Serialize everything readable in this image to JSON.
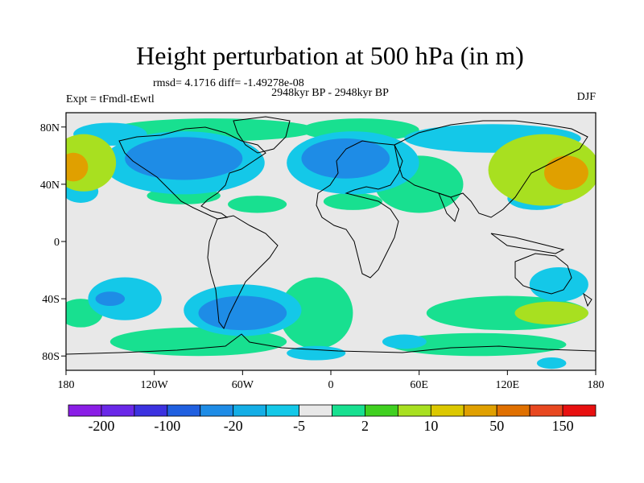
{
  "chart_data": {
    "type": "heatmap",
    "title": "Height perturbation at 500 hPa (in m)",
    "subtitle_stats": "rmsd= 4.1716 diff= -1.49278e-08",
    "left_label": "Expt = tFmdl-tEwtl",
    "center_label": "2948kyr BP - 2948kyr BP",
    "right_label": "DJF",
    "x_ticks": [
      "180",
      "120W",
      "60W",
      "0",
      "60E",
      "120E",
      "180"
    ],
    "y_ticks": [
      "80N",
      "40N",
      "0",
      "40S",
      "80S"
    ],
    "xlim": [
      -180,
      180
    ],
    "ylim": [
      -90,
      90
    ],
    "colorbar_labels": [
      "-200",
      "-100",
      "-20",
      "-5",
      "2",
      "10",
      "50",
      "150"
    ],
    "colorbar_colors": [
      "#8a1ee6",
      "#6a28e8",
      "#3c32e0",
      "#2060e0",
      "#1e8ce6",
      "#14aee6",
      "#14c8e8",
      "#e8e8e8",
      "#18e090",
      "#40d020",
      "#a8e020",
      "#dcc800",
      "#e0a000",
      "#e07000",
      "#e84820",
      "#e81010"
    ],
    "positive_regions": [
      {
        "label": "",
        "cx": -168,
        "cy": 55,
        "rx": 22,
        "ry": 20,
        "level": 10
      },
      {
        "label": "",
        "cx": -175,
        "cy": 52,
        "rx": 10,
        "ry": 10,
        "level": 50
      },
      {
        "label": "",
        "cx": 145,
        "cy": 50,
        "rx": 38,
        "ry": 25,
        "level": 10
      },
      {
        "label": "",
        "cx": 160,
        "cy": 48,
        "rx": 15,
        "ry": 12,
        "level": 50
      },
      {
        "label": "",
        "cx": -80,
        "cy": 78,
        "rx": 70,
        "ry": 8,
        "level": 2
      },
      {
        "label": "",
        "cx": 20,
        "cy": 78,
        "rx": 40,
        "ry": 8,
        "level": 2
      },
      {
        "label": "",
        "cx": 60,
        "cy": 40,
        "rx": 30,
        "ry": 20,
        "level": 2
      },
      {
        "label": "",
        "cx": -100,
        "cy": 32,
        "rx": 25,
        "ry": 6,
        "level": 2
      },
      {
        "label": "",
        "cx": -50,
        "cy": 26,
        "rx": 20,
        "ry": 6,
        "level": 2
      },
      {
        "label": "",
        "cx": 15,
        "cy": 28,
        "rx": 20,
        "ry": 6,
        "level": 2
      },
      {
        "label": "",
        "cx": -10,
        "cy": -50,
        "rx": 25,
        "ry": 25,
        "level": 2
      },
      {
        "label": "",
        "cx": 120,
        "cy": -50,
        "rx": 55,
        "ry": 12,
        "level": 2
      },
      {
        "label": "",
        "cx": 150,
        "cy": -50,
        "rx": 25,
        "ry": 8,
        "level": 10
      },
      {
        "label": "",
        "cx": -90,
        "cy": -70,
        "rx": 60,
        "ry": 10,
        "level": 2
      },
      {
        "label": "",
        "cx": 100,
        "cy": -72,
        "rx": 60,
        "ry": 8,
        "level": 2
      },
      {
        "label": "",
        "cx": -170,
        "cy": -50,
        "rx": 15,
        "ry": 10,
        "level": 2
      }
    ],
    "negative_regions": [
      {
        "label": "",
        "cx": -100,
        "cy": 55,
        "rx": 55,
        "ry": 22,
        "level": -5
      },
      {
        "label": "",
        "cx": -100,
        "cy": 58,
        "rx": 40,
        "ry": 15,
        "level": -20
      },
      {
        "label": "",
        "cx": 15,
        "cy": 55,
        "rx": 45,
        "ry": 22,
        "level": -5
      },
      {
        "label": "",
        "cx": 10,
        "cy": 58,
        "rx": 30,
        "ry": 14,
        "level": -20
      },
      {
        "label": "",
        "cx": 110,
        "cy": 72,
        "rx": 60,
        "ry": 10,
        "level": -5
      },
      {
        "label": "",
        "cx": -150,
        "cy": 75,
        "rx": 25,
        "ry": 8,
        "level": -5
      },
      {
        "label": "",
        "cx": -60,
        "cy": -48,
        "rx": 40,
        "ry": 18,
        "level": -5
      },
      {
        "label": "",
        "cx": -60,
        "cy": -50,
        "rx": 30,
        "ry": 12,
        "level": -20
      },
      {
        "label": "",
        "cx": -140,
        "cy": -40,
        "rx": 25,
        "ry": 15,
        "level": -5
      },
      {
        "label": "",
        "cx": -150,
        "cy": -40,
        "rx": 10,
        "ry": 5,
        "level": -20
      },
      {
        "label": "",
        "cx": 155,
        "cy": -30,
        "rx": 20,
        "ry": 12,
        "level": -5
      },
      {
        "label": "",
        "cx": 140,
        "cy": 30,
        "rx": 20,
        "ry": 8,
        "level": -5
      },
      {
        "label": "",
        "cx": -170,
        "cy": 35,
        "rx": 12,
        "ry": 8,
        "level": -5
      },
      {
        "label": "",
        "cx": -10,
        "cy": -78,
        "rx": 20,
        "ry": 5,
        "level": -5
      },
      {
        "label": "",
        "cx": 50,
        "cy": -70,
        "rx": 15,
        "ry": 5,
        "level": -5
      },
      {
        "label": "",
        "cx": 150,
        "cy": -85,
        "rx": 10,
        "ry": 4,
        "level": -5
      }
    ]
  }
}
